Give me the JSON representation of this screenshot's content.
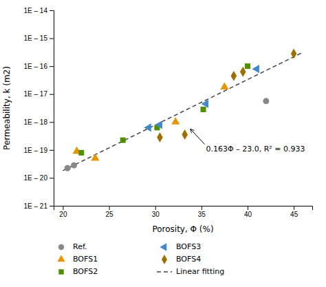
{
  "chart_data": {
    "type": "scatter",
    "xlabel": "Porosity, Φ (%)",
    "ylabel": "Permeability, k (m2)",
    "xlim": [
      19,
      47
    ],
    "xticks": [
      20,
      25,
      30,
      35,
      40,
      45
    ],
    "ylim": [
      -21,
      -14
    ],
    "yticks": [
      {
        "value": -21,
        "label": "1E – 21"
      },
      {
        "value": -20,
        "label": "1E – 20"
      },
      {
        "value": -19,
        "label": "1E – 19"
      },
      {
        "value": -18,
        "label": "1E – 18"
      },
      {
        "value": -17,
        "label": "1E – 17"
      },
      {
        "value": -16,
        "label": "1E – 16"
      },
      {
        "value": -15,
        "label": "1E – 15"
      },
      {
        "value": -14,
        "label": "1E – 14"
      }
    ],
    "grid": false,
    "legend": "bottom",
    "series": [
      {
        "name": "Ref.",
        "type": "scatter",
        "marker": "circle",
        "color": "#888888",
        "x": [
          20.5,
          21.2,
          42.0
        ],
        "values": [
          -19.65,
          -19.55,
          -17.25
        ]
      },
      {
        "name": "BOFS1",
        "type": "scatter",
        "marker": "triangle-up",
        "color": "#e69500",
        "x": [
          21.5,
          23.5,
          32.2,
          37.5
        ],
        "values": [
          -19.05,
          -19.3,
          -18.0,
          -16.75
        ]
      },
      {
        "name": "BOFS2",
        "type": "scatter",
        "marker": "square",
        "color": "#4f8f00",
        "x": [
          22.0,
          26.5,
          30.2,
          35.2,
          40.0
        ],
        "values": [
          -19.1,
          -18.65,
          -18.2,
          -17.55,
          -16.0
        ]
      },
      {
        "name": "BOFS3",
        "type": "scatter",
        "marker": "triangle-left",
        "color": "#4488cc",
        "x": [
          29.3,
          30.5,
          35.5,
          41.0
        ],
        "values": [
          -18.2,
          -18.1,
          -17.35,
          -16.1
        ]
      },
      {
        "name": "BOFS4",
        "type": "scatter",
        "marker": "diamond",
        "color": "#9B7000",
        "x": [
          30.5,
          33.2,
          38.5,
          39.5,
          45.0
        ],
        "values": [
          -18.55,
          -18.45,
          -16.35,
          -16.2,
          -15.55
        ]
      },
      {
        "name": "Linear fitting",
        "type": "line",
        "line_style": "dashed",
        "color": "#444444",
        "x": [
          20,
          46
        ],
        "values": [
          -19.74,
          -15.502
        ]
      }
    ],
    "annotations": [
      {
        "text": "0.163Φ – 23.0, R² = 0.933",
        "x": 35.5,
        "y": -18.85,
        "arrow_x": 33.8,
        "arrow_y": -18.25
      }
    ]
  }
}
